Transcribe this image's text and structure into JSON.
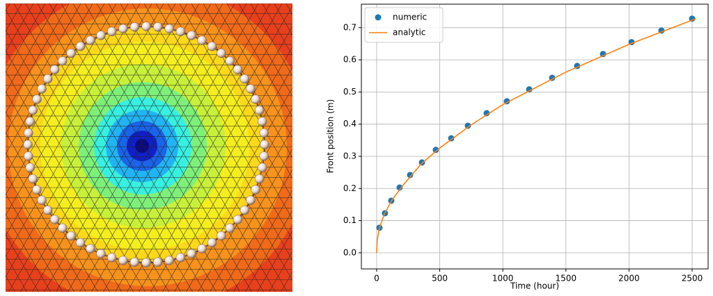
{
  "chart_data": {
    "type": "line",
    "xlabel": "Time (hour)",
    "ylabel": "Front position (m)",
    "xlim": [
      -121,
      2627
    ],
    "ylim": [
      -0.05,
      0.773
    ],
    "xticks": [
      0,
      500,
      1000,
      1500,
      2000,
      2500
    ],
    "yticks": [
      {
        "value": 0,
        "label": "0.0"
      },
      0.1,
      0.2,
      0.3,
      0.4,
      0.5,
      0.6,
      0.7
    ],
    "grid": true,
    "legend": "upper left",
    "series": [
      {
        "name": "numeric",
        "mode": "markers",
        "color": "#1f77b4",
        "x": [
          22,
          66,
          116,
          182,
          265,
          359,
          469,
          591,
          723,
          872,
          1032,
          1209,
          1391,
          1589,
          1794,
          2020,
          2257,
          2500
        ],
        "values": [
          0.078,
          0.123,
          0.162,
          0.203,
          0.242,
          0.281,
          0.32,
          0.356,
          0.395,
          0.434,
          0.471,
          0.508,
          0.544,
          0.581,
          0.618,
          0.655,
          0.691,
          0.728
        ]
      },
      {
        "name": "analytic",
        "mode": "line",
        "color": "#ff7f0e",
        "x": [
          0,
          5,
          20,
          60,
          120,
          200,
          350,
          500,
          750,
          1000,
          1500,
          2000,
          2530
        ],
        "values": [
          0,
          0.04,
          0.074,
          0.12,
          0.163,
          0.206,
          0.275,
          0.326,
          0.398,
          0.461,
          0.562,
          0.648,
          0.728
        ]
      }
    ]
  }
}
